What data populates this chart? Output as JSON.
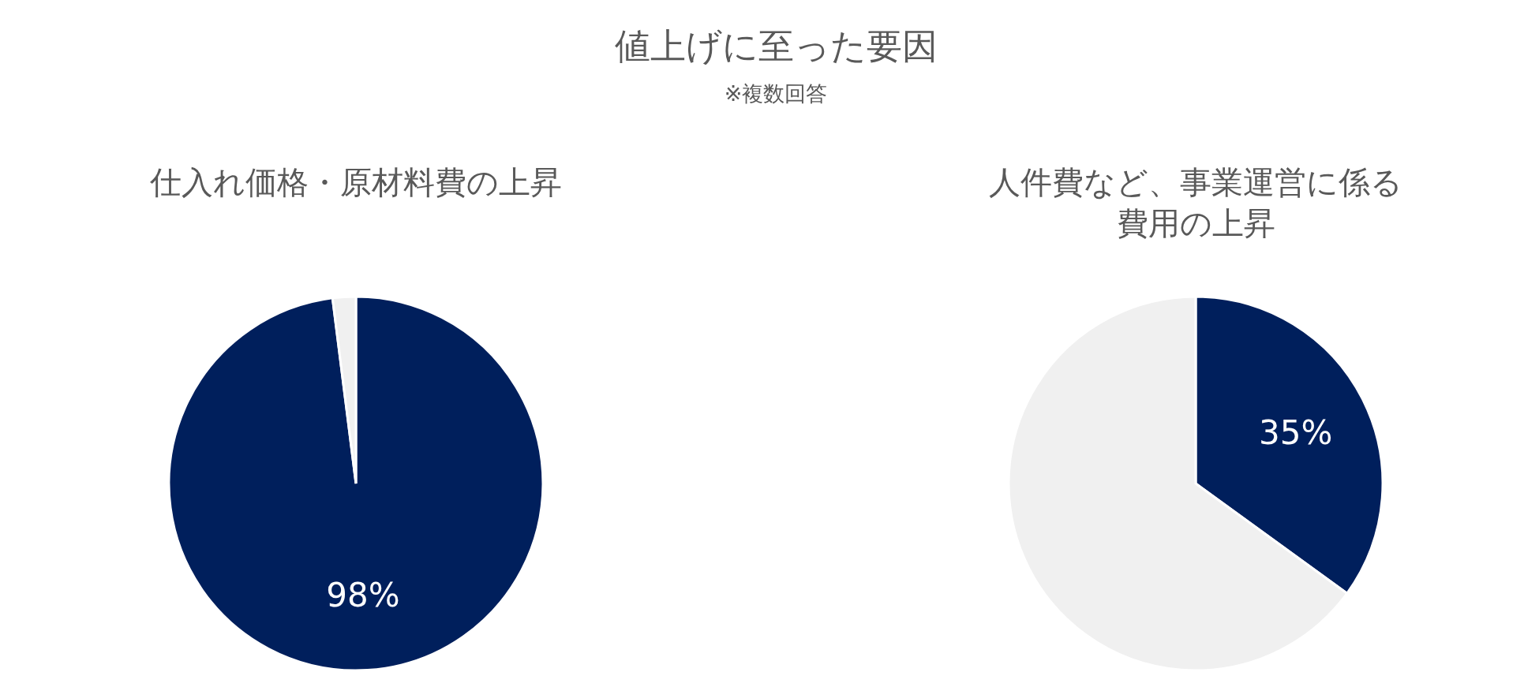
{
  "chart_data": [
    {
      "type": "other",
      "title": "値上げに至った要因",
      "subtitle": "※複数回答"
    },
    {
      "type": "pie",
      "title": "仕入れ価格・原材料費の上昇",
      "categories": [
        null,
        null
      ],
      "values": [
        98,
        2
      ],
      "colors": [
        "#001f5c",
        "#f0f0f0"
      ],
      "value_labels": [
        "98%",
        null
      ]
    },
    {
      "type": "pie",
      "title": "人件費など、事業運営に係る費用の上昇",
      "categories": [
        null,
        null
      ],
      "values": [
        35,
        65
      ],
      "colors": [
        "#001f5c",
        "#f0f0f0"
      ],
      "value_labels": [
        "35%",
        null
      ]
    }
  ]
}
